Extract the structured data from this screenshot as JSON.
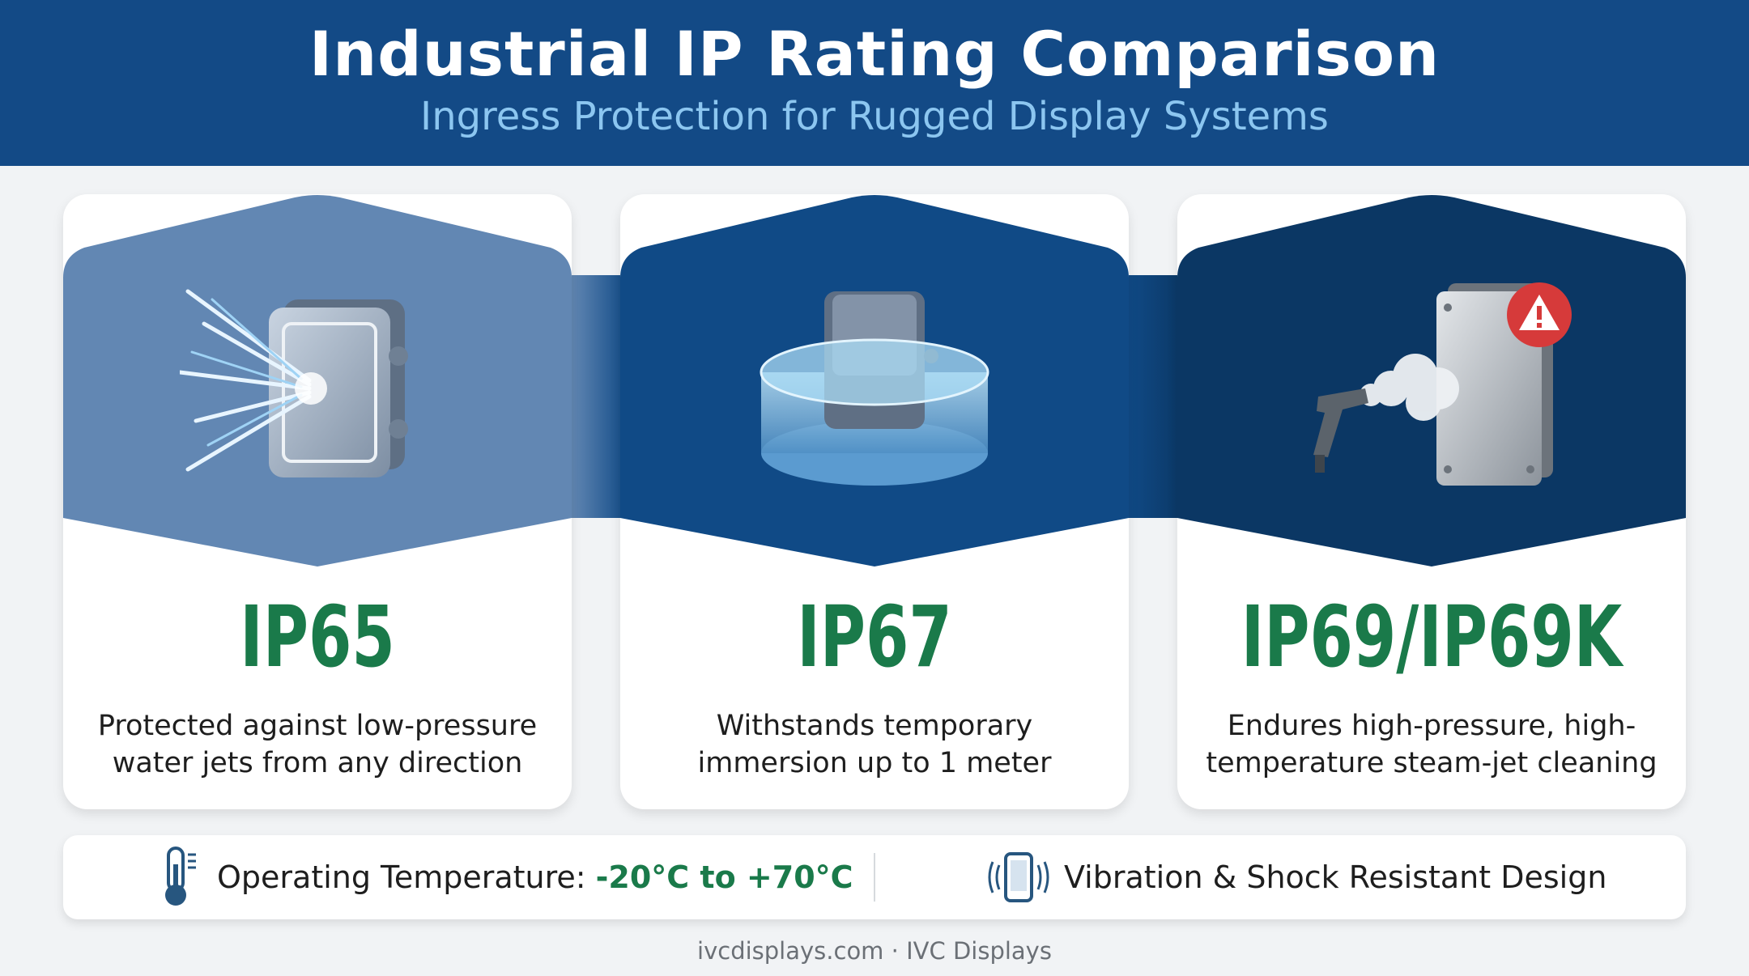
{
  "header": {
    "title": "Industrial IP Rating Comparison",
    "subtitle": "Ingress Protection for Rugged Display Systems",
    "background_color": "#134a86",
    "subtitle_color": "#8cc6f0"
  },
  "cards": [
    {
      "rating": "IP65",
      "description_line1": "Protected against low-pressure",
      "description_line2": "water jets from any direction",
      "icon": "water-jet-enclosure-icon",
      "top_color": "#6287b3"
    },
    {
      "rating": "IP67",
      "description_line1": "Withstands temporary",
      "description_line2": "immersion up to 1 meter",
      "icon": "immersed-enclosure-icon",
      "top_color": "#104a86"
    },
    {
      "rating": "IP69/IP69K",
      "description_line1": "Endures high-pressure, high-",
      "description_line2": "temperature steam-jet cleaning",
      "icon": "steam-jet-enclosure-icon",
      "top_color": "#0b3764"
    }
  ],
  "rating_color": "#1a7a4a",
  "features": {
    "temperature_label": "Operating Temperature: ",
    "temperature_value": "-20°C to +70°C",
    "temperature_icon": "thermometer-icon",
    "vibration_label": "Vibration & Shock Resistant Design",
    "vibration_icon": "vibrating-device-icon"
  },
  "footer": "ivcdisplays.com · IVC Displays"
}
